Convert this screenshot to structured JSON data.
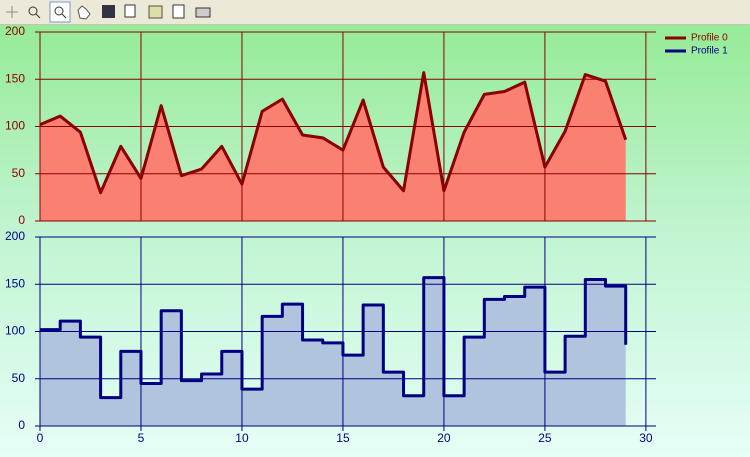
{
  "chart_data": [
    {
      "type": "area",
      "x": [
        0,
        1,
        2,
        3,
        4,
        5,
        6,
        7,
        8,
        9,
        10,
        11,
        12,
        13,
        14,
        15,
        16,
        17,
        18,
        19,
        20,
        21,
        22,
        23,
        24,
        25,
        26,
        27,
        28,
        29
      ],
      "series": [
        {
          "name": "Profile 0",
          "color": "#8b0000",
          "fill": "#fa8072",
          "values": [
            102,
            111,
            94,
            30,
            79,
            45,
            122,
            48,
            55,
            79,
            39,
            116,
            129,
            91,
            88,
            75,
            128,
            57,
            32,
            157,
            32,
            94,
            134,
            137,
            147,
            57,
            95,
            155,
            148,
            86
          ]
        }
      ],
      "xlim": [
        0,
        30.5
      ],
      "xticks": [
        0,
        5,
        10,
        15,
        20,
        25,
        30
      ],
      "ylim": [
        0,
        200
      ],
      "yticks": [
        0,
        50,
        100,
        150,
        200
      ],
      "grid": true,
      "legend": "right"
    },
    {
      "type": "step-area",
      "x": [
        0,
        1,
        2,
        3,
        4,
        5,
        6,
        7,
        8,
        9,
        10,
        11,
        12,
        13,
        14,
        15,
        16,
        17,
        18,
        19,
        20,
        21,
        22,
        23,
        24,
        25,
        26,
        27,
        28,
        29
      ],
      "series": [
        {
          "name": "Profile 1",
          "color": "#000080",
          "fill": "#b0c4de",
          "values": [
            102,
            111,
            94,
            30,
            79,
            45,
            122,
            48,
            55,
            79,
            39,
            116,
            129,
            91,
            88,
            75,
            128,
            57,
            32,
            157,
            32,
            94,
            134,
            137,
            147,
            57,
            95,
            155,
            148,
            86
          ]
        }
      ],
      "xlim": [
        0,
        30.5
      ],
      "xticks": [
        0,
        5,
        10,
        15,
        20,
        25,
        30
      ],
      "ylim": [
        0,
        200
      ],
      "yticks": [
        0,
        50,
        100,
        150,
        200
      ],
      "grid": true
    }
  ]
}
